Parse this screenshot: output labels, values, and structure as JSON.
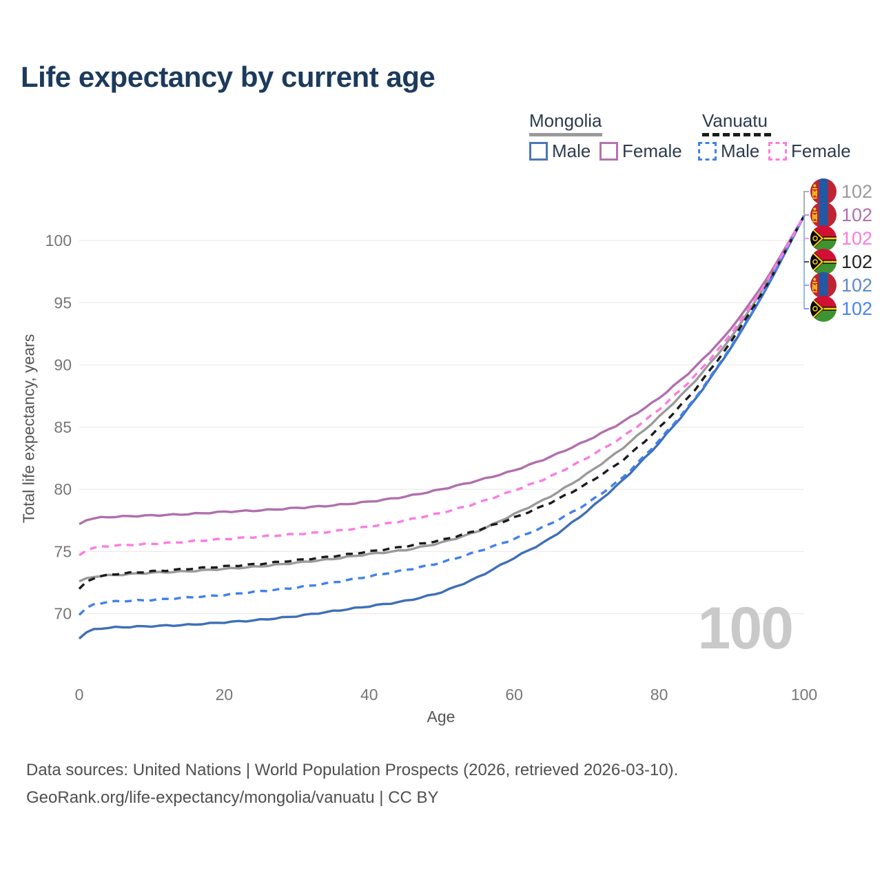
{
  "title": "Life expectancy by current age",
  "watermark": "100",
  "legend": {
    "groups": [
      {
        "country": "Mongolia",
        "line_style": "solid",
        "line_color": "#9a9a9a",
        "items": [
          {
            "label": "Male",
            "color": "#4a76b8",
            "style": "solid"
          },
          {
            "label": "Female",
            "color": "#b273ae",
            "style": "solid"
          }
        ]
      },
      {
        "country": "Vanuatu",
        "line_style": "dashed",
        "line_color": "#1b1b1b",
        "items": [
          {
            "label": "Male",
            "color": "#4080ee",
            "style": "dashed"
          },
          {
            "label": "Female",
            "color": "#fc7be0",
            "style": "dashed"
          }
        ]
      }
    ]
  },
  "end_labels": [
    {
      "flag": "mongolia",
      "series": "Mongolia",
      "value": "102",
      "color": "#9a9a9a"
    },
    {
      "flag": "mongolia",
      "series": "Mongolia Female",
      "value": "102",
      "color": "#b06fae"
    },
    {
      "flag": "vanuatu",
      "series": "Vanuatu Female",
      "value": "102",
      "color": "#fc7be0"
    },
    {
      "flag": "vanuatu",
      "series": "Vanuatu",
      "value": "102",
      "color": "#222222"
    },
    {
      "flag": "mongolia",
      "series": "Mongolia Male",
      "value": "102",
      "color": "#5e88cb"
    },
    {
      "flag": "vanuatu",
      "series": "Vanuatu Male",
      "value": "102",
      "color": "#4a82ef"
    }
  ],
  "footer": {
    "line1": "Data sources: United Nations | World Population Prospects (2026, retrieved 2026-03-10).",
    "line2": "GeoRank.org/life-expectancy/mongolia/vanuatu | CC BY"
  },
  "chart_data": {
    "type": "line",
    "title": "Life expectancy by current age",
    "xlabel": "Age",
    "ylabel": "Total life expectancy, years",
    "x_ticks": [
      0,
      20,
      40,
      60,
      80,
      100
    ],
    "y_ticks": [
      70,
      75,
      80,
      85,
      90,
      95,
      100
    ],
    "xlim": [
      0,
      100
    ],
    "ylim": [
      66.5,
      103.5
    ],
    "grid": "horizontal",
    "legend_position": "top-right",
    "ages": [
      0,
      1,
      5,
      10,
      15,
      20,
      25,
      30,
      35,
      40,
      45,
      50,
      55,
      60,
      65,
      70,
      75,
      80,
      85,
      90,
      95,
      100
    ],
    "series": [
      {
        "name": "Mongolia",
        "group": "Mongolia",
        "sex": "Both",
        "color": "#9a9a9a",
        "dash": "solid",
        "end_value": 102,
        "values": [
          72.6,
          73.0,
          73.1,
          73.3,
          73.4,
          73.6,
          73.8,
          74.1,
          74.4,
          74.8,
          75.1,
          75.7,
          76.6,
          78.0,
          79.4,
          81.2,
          83.3,
          85.8,
          88.7,
          92.2,
          96.7,
          102
        ]
      },
      {
        "name": "Mongolia Female",
        "group": "Mongolia",
        "sex": "Female",
        "color": "#b06fae",
        "dash": "solid",
        "end_value": 102,
        "values": [
          77.2,
          77.7,
          77.8,
          77.9,
          78.0,
          78.2,
          78.3,
          78.5,
          78.7,
          79.0,
          79.4,
          80.0,
          80.7,
          81.5,
          82.6,
          83.9,
          85.4,
          87.3,
          89.8,
          92.9,
          97.0,
          102
        ]
      },
      {
        "name": "Mongolia Male",
        "group": "Mongolia",
        "sex": "Male",
        "color": "#3e6fb7",
        "dash": "solid",
        "end_value": 102,
        "values": [
          68.0,
          68.8,
          68.9,
          69.0,
          69.1,
          69.3,
          69.5,
          69.8,
          70.2,
          70.6,
          71.0,
          71.7,
          72.9,
          74.5,
          76.0,
          78.2,
          80.7,
          83.7,
          87.2,
          91.4,
          96.3,
          102
        ]
      },
      {
        "name": "Vanuatu",
        "group": "Vanuatu",
        "sex": "Both",
        "color": "#1b1b1b",
        "dash": "dashed",
        "end_value": 102,
        "values": [
          72.0,
          72.9,
          73.2,
          73.4,
          73.6,
          73.8,
          74.0,
          74.3,
          74.6,
          75.0,
          75.4,
          75.9,
          76.7,
          77.7,
          78.9,
          80.4,
          82.3,
          84.9,
          88.0,
          91.9,
          96.5,
          102
        ]
      },
      {
        "name": "Vanuatu Female",
        "group": "Vanuatu",
        "sex": "Female",
        "color": "#fc7be0",
        "dash": "dashed",
        "end_value": 102,
        "values": [
          74.7,
          75.3,
          75.5,
          75.6,
          75.8,
          76.0,
          76.2,
          76.4,
          76.6,
          77.0,
          77.5,
          78.1,
          78.9,
          79.9,
          81.0,
          82.5,
          84.2,
          86.4,
          89.1,
          92.5,
          96.8,
          102
        ]
      },
      {
        "name": "Vanuatu Male",
        "group": "Vanuatu",
        "sex": "Male",
        "color": "#4080ee",
        "dash": "dashed",
        "end_value": 102,
        "values": [
          69.9,
          70.8,
          71.0,
          71.1,
          71.3,
          71.5,
          71.8,
          72.1,
          72.5,
          73.0,
          73.5,
          74.1,
          75.0,
          76.0,
          77.2,
          78.8,
          80.9,
          83.9,
          87.3,
          91.5,
          96.3,
          102
        ]
      }
    ]
  }
}
